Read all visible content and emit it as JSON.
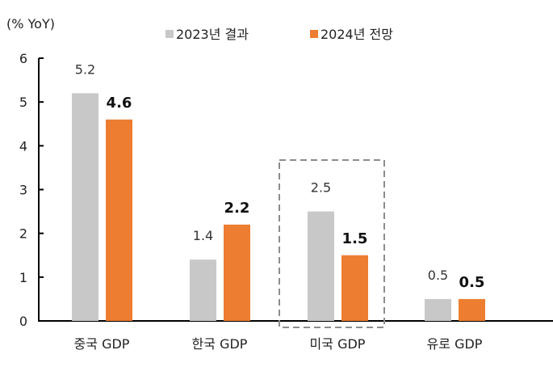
{
  "chart_data": {
    "type": "bar",
    "ylabel": "(% YoY)",
    "categories": [
      "중국 GDP",
      "한국 GDP",
      "미국 GDP",
      "유로 GDP"
    ],
    "series": [
      {
        "name": "2023년 결과",
        "values": [
          5.2,
          1.4,
          2.5,
          0.5
        ],
        "labels": [
          "5.2",
          "1.4",
          "2.5",
          "0.5"
        ],
        "color": "#c8c8c8"
      },
      {
        "name": "2024년 전망",
        "values": [
          4.6,
          2.2,
          1.5,
          0.5
        ],
        "labels": [
          "4.6",
          "2.2",
          "1.5",
          "0.5"
        ],
        "color": "#ed7d31"
      }
    ],
    "ylim": [
      0,
      6
    ],
    "yticks": [
      "0",
      "1",
      "2",
      "3",
      "4",
      "5",
      "6"
    ],
    "grid": false,
    "legend": "top",
    "highlight": {
      "category": "미국 GDP",
      "style": "dashed-box",
      "color": "#8c8c8c"
    }
  }
}
